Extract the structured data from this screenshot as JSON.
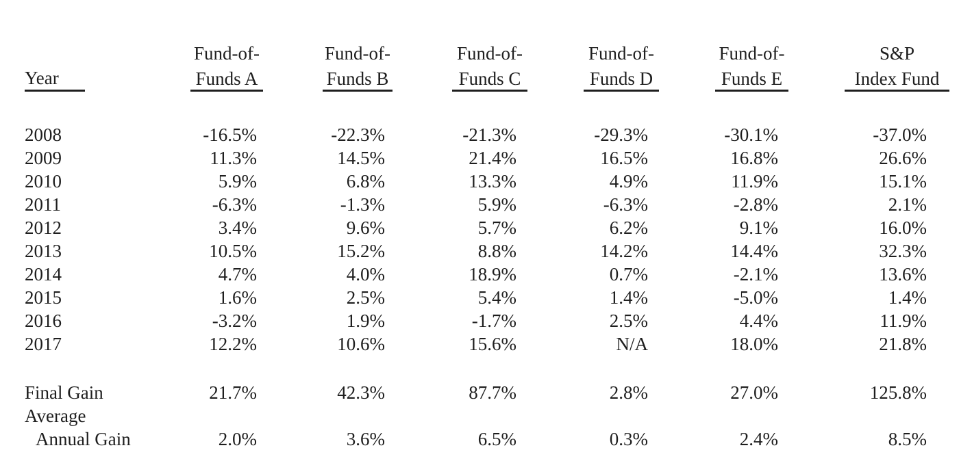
{
  "header": {
    "year": "Year",
    "columns": [
      {
        "line1": "Fund-of-",
        "line2": "Funds A"
      },
      {
        "line1": "Fund-of-",
        "line2": "Funds B"
      },
      {
        "line1": "Fund-of-",
        "line2": "Funds C"
      },
      {
        "line1": "Fund-of-",
        "line2": "Funds D"
      },
      {
        "line1": "Fund-of-",
        "line2": "Funds E"
      },
      {
        "line1": "S&P",
        "line2": "Index Fund"
      }
    ]
  },
  "rows": [
    {
      "year": "2008",
      "values": [
        "-16.5%",
        "-22.3%",
        "-21.3%",
        "-29.3%",
        "-30.1%",
        "-37.0%"
      ]
    },
    {
      "year": "2009",
      "values": [
        "11.3%",
        "14.5%",
        "21.4%",
        "16.5%",
        "16.8%",
        "26.6%"
      ]
    },
    {
      "year": "2010",
      "values": [
        "5.9%",
        "6.8%",
        "13.3%",
        "4.9%",
        "11.9%",
        "15.1%"
      ]
    },
    {
      "year": "2011",
      "values": [
        "-6.3%",
        "-1.3%",
        "5.9%",
        "-6.3%",
        "-2.8%",
        "2.1%"
      ]
    },
    {
      "year": "2012",
      "values": [
        "3.4%",
        "9.6%",
        "5.7%",
        "6.2%",
        "9.1%",
        "16.0%"
      ]
    },
    {
      "year": "2013",
      "values": [
        "10.5%",
        "15.2%",
        "8.8%",
        "14.2%",
        "14.4%",
        "32.3%"
      ]
    },
    {
      "year": "2014",
      "values": [
        "4.7%",
        "4.0%",
        "18.9%",
        "0.7%",
        "-2.1%",
        "13.6%"
      ]
    },
    {
      "year": "2015",
      "values": [
        "1.6%",
        "2.5%",
        "5.4%",
        "1.4%",
        "-5.0%",
        "1.4%"
      ]
    },
    {
      "year": "2016",
      "values": [
        "-3.2%",
        "1.9%",
        "-1.7%",
        "2.5%",
        "4.4%",
        "11.9%"
      ]
    },
    {
      "year": "2017",
      "values": [
        "12.2%",
        "10.6%",
        "15.6%",
        "N/A",
        "18.0%",
        "21.8%"
      ]
    }
  ],
  "summary": {
    "final_gain": {
      "label": "Final Gain",
      "values": [
        "21.7%",
        "42.3%",
        "87.7%",
        "2.8%",
        "27.0%",
        "125.8%"
      ]
    },
    "average_annual_gain": {
      "label_line1": "Average",
      "label_line2": "Annual Gain",
      "values": [
        "2.0%",
        "3.6%",
        "6.5%",
        "0.3%",
        "2.4%",
        "8.5%"
      ]
    }
  }
}
